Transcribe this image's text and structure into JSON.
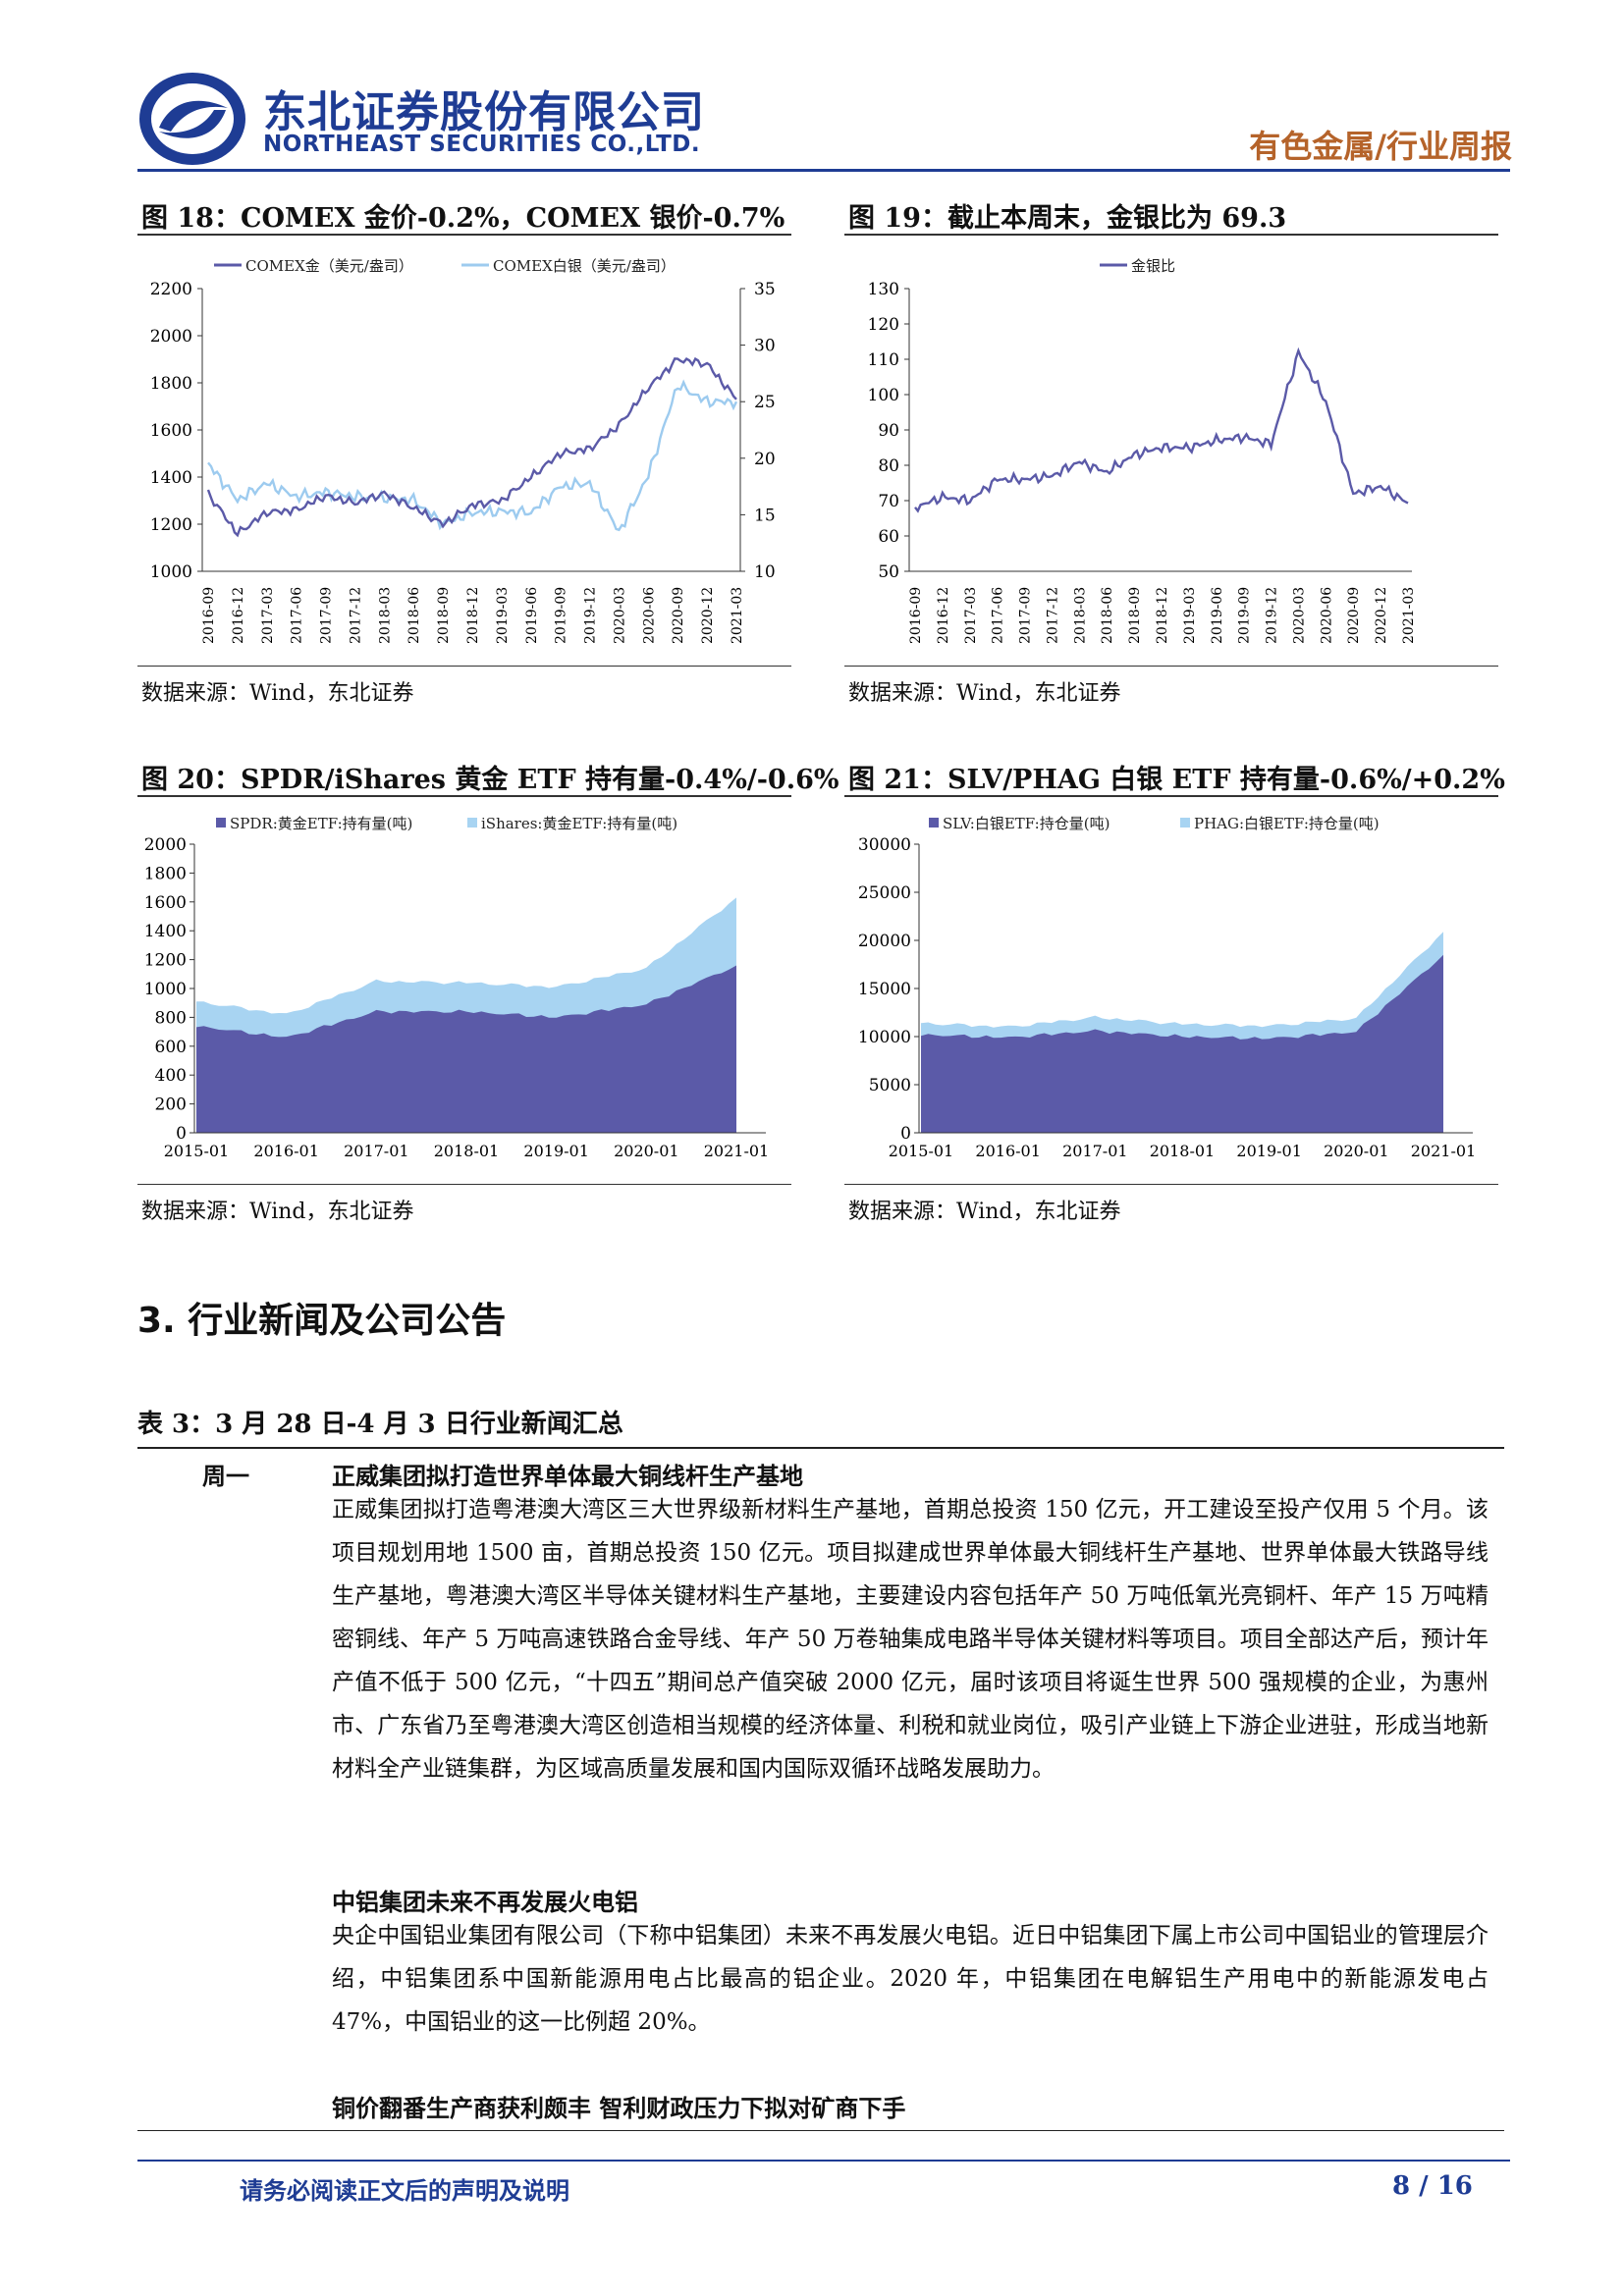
{
  "header": {
    "company_cn": "东北证券股份有限公司",
    "company_en": "NORTHEAST SECURITIES CO.,LTD.",
    "report_type": "有色金属/行业周报",
    "brand_color": "#1e3c94",
    "accent_color": "#b5632a"
  },
  "figures": [
    {
      "title": "图 18：COMEX 金价-0.2%，COMEX 银价-0.7%",
      "source": "数据来源：Wind，东北证券"
    },
    {
      "title": "图 19：截止本周末，金银比为 69.3",
      "source": "数据来源：Wind，东北证券"
    },
    {
      "title": "图 20：SPDR/iShares 黄金 ETF 持有量-0.4%/-0.6%",
      "source": "数据来源：Wind，东北证券"
    },
    {
      "title": "图 21：SLV/PHAG 白银 ETF 持有量-0.6%/+0.2%",
      "source": "数据来源：Wind，东北证券"
    }
  ],
  "chart_data": [
    {
      "type": "line",
      "x": [
        "2016-09",
        "2016-12",
        "2017-03",
        "2017-06",
        "2017-09",
        "2017-12",
        "2018-03",
        "2018-06",
        "2018-09",
        "2018-12",
        "2019-03",
        "2019-06",
        "2019-09",
        "2019-12",
        "2020-03",
        "2020-06",
        "2020-09",
        "2020-12",
        "2021-03"
      ],
      "series": [
        {
          "name": "COMEX金（美元/盎司）",
          "axis": "left",
          "color": "#5b5aa8",
          "values": [
            1330,
            1160,
            1250,
            1260,
            1320,
            1290,
            1330,
            1270,
            1200,
            1280,
            1300,
            1400,
            1500,
            1520,
            1620,
            1780,
            1900,
            1880,
            1730
          ]
        },
        {
          "name": "COMEX白银（美元/盎司）",
          "axis": "right",
          "color": "#9dcbef",
          "values": [
            19.5,
            16.3,
            17.8,
            16.6,
            17.0,
            16.6,
            16.5,
            16.3,
            14.2,
            15.2,
            15.3,
            15.2,
            17.5,
            17.8,
            13.5,
            18.5,
            26.5,
            25.0,
            25.0
          ]
        }
      ],
      "y_left_ticks": [
        1000,
        1200,
        1400,
        1600,
        1800,
        2000,
        2200
      ],
      "y_right_ticks": [
        10,
        15,
        20,
        25,
        30,
        35
      ],
      "ylim_left": [
        1000,
        2200
      ],
      "ylim_right": [
        10,
        35
      ]
    },
    {
      "type": "line",
      "x": [
        "2016-09",
        "2016-12",
        "2017-03",
        "2017-06",
        "2017-09",
        "2017-12",
        "2018-03",
        "2018-06",
        "2018-09",
        "2018-12",
        "2019-03",
        "2019-06",
        "2019-09",
        "2019-12",
        "2020-03",
        "2020-06",
        "2020-09",
        "2020-12",
        "2021-03"
      ],
      "series": [
        {
          "name": "金银比",
          "color": "#5b5aa8",
          "values": [
            68,
            71,
            70,
            76,
            76,
            77,
            81,
            78,
            83,
            85,
            85,
            87,
            88,
            86,
            112,
            98,
            72,
            74,
            69.3
          ]
        }
      ],
      "y_ticks": [
        50,
        60,
        70,
        80,
        90,
        100,
        110,
        120,
        130
      ],
      "ylim": [
        50,
        130
      ]
    },
    {
      "type": "area",
      "x": [
        "2015-01",
        "2016-01",
        "2017-01",
        "2018-01",
        "2019-01",
        "2020-01",
        "2021-01"
      ],
      "series": [
        {
          "name": "SPDR:黄金ETF:持有量(吨)",
          "color": "#5b5aa8",
          "values": [
            740,
            660,
            840,
            840,
            800,
            890,
            1160
          ]
        },
        {
          "name": "iShares:黄金ETF:持有量(吨)",
          "color": "#a8d4f2",
          "values": [
            170,
            160,
            210,
            200,
            210,
            250,
            470
          ]
        }
      ],
      "y_ticks": [
        0,
        200,
        400,
        600,
        800,
        1000,
        1200,
        1400,
        1600,
        1800,
        2000
      ],
      "ylim": [
        0,
        2000
      ],
      "stacked": true
    },
    {
      "type": "area",
      "x": [
        "2015-01",
        "2016-01",
        "2017-01",
        "2018-01",
        "2019-01",
        "2020-01",
        "2021-01"
      ],
      "series": [
        {
          "name": "SLV:白银ETF:持仓量(吨)",
          "color": "#5b5aa8",
          "values": [
            10200,
            9900,
            10600,
            10000,
            9800,
            10500,
            18500
          ]
        },
        {
          "name": "PHAG:白银ETF:持仓量(吨)",
          "color": "#a8d4f2",
          "values": [
            1200,
            1100,
            1400,
            1300,
            1300,
            1400,
            2400
          ]
        }
      ],
      "y_ticks": [
        0,
        5000,
        10000,
        15000,
        20000,
        25000,
        30000
      ],
      "ylim": [
        0,
        30000
      ],
      "stacked": true
    }
  ],
  "section": {
    "heading": "3. 行业新闻及公司公告",
    "table_title": "表 3：3 月 28 日-4 月 3 日行业新闻汇总",
    "day": "周一",
    "news": [
      {
        "title": "正威集团拟打造世界单体最大铜线杆生产基地",
        "body": "正威集团拟打造粤港澳大湾区三大世界级新材料生产基地，首期总投资 150 亿元，开工建设至投产仅用 5 个月。该项目规划用地 1500 亩，首期总投资 150 亿元。项目拟建成世界单体最大铜线杆生产基地、世界单体最大铁路导线生产基地，粤港澳大湾区半导体关键材料生产基地，主要建设内容包括年产 50 万吨低氧光亮铜杆、年产 15 万吨精密铜线、年产 5 万吨高速铁路合金导线、年产 50 万卷轴集成电路半导体关键材料等项目。项目全部达产后，预计年产值不低于 500 亿元，“十四五”期间总产值突破 2000 亿元，届时该项目将诞生世界 500 强规模的企业，为惠州市、广东省乃至粤港澳大湾区创造相当规模的经济体量、利税和就业岗位，吸引产业链上下游企业进驻，形成当地新材料全产业链集群，为区域高质量发展和国内国际双循环战略发展助力。"
      },
      {
        "title": "中铝集团未来不再发展火电铝",
        "body": "央企中国铝业集团有限公司（下称中铝集团）未来不再发展火电铝。近日中铝集团下属上市公司中国铝业的管理层介绍，中铝集团系中国新能源用电占比最高的铝企业。2020 年，中铝集团在电解铝生产用电中的新能源发电占 47%，中国铝业的这一比例超 20%。"
      },
      {
        "title": "铜价翻番生产商获利颇丰  智利财政压力下拟对矿商下手",
        "body": ""
      }
    ]
  },
  "footer": {
    "note": "请务必阅读正文后的声明及说明",
    "page": "8 / 16"
  }
}
